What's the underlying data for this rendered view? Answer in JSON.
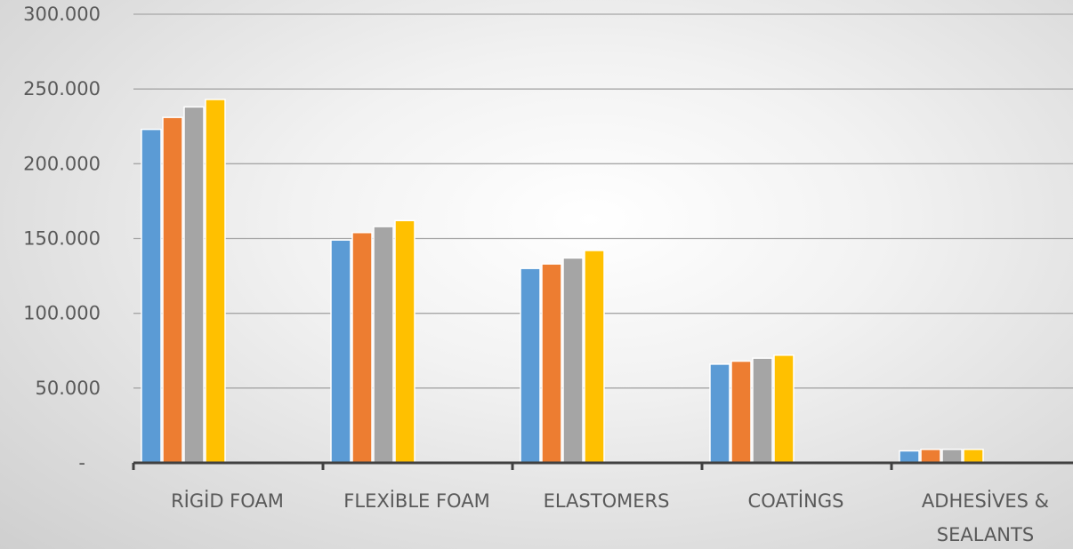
{
  "chart_data": {
    "type": "bar",
    "title": "",
    "xlabel": "",
    "ylabel": "",
    "ylim": [
      0,
      300000
    ],
    "yticks": [
      {
        "value": 0,
        "label": "-"
      },
      {
        "value": 50000,
        "label": "50.000"
      },
      {
        "value": 100000,
        "label": "100.000"
      },
      {
        "value": 150000,
        "label": "150.000"
      },
      {
        "value": 200000,
        "label": "200.000"
      },
      {
        "value": 250000,
        "label": "250.000"
      },
      {
        "value": 300000,
        "label": "300.000"
      }
    ],
    "grid": true,
    "legend": "none",
    "categories": [
      [
        "RİGİD FOAM"
      ],
      [
        "FLEXİBLE FOAM"
      ],
      [
        "ELASTOMERS"
      ],
      [
        "COATİNGS"
      ],
      [
        "ADHESİVES &",
        "SEALANTS"
      ]
    ],
    "series": [
      {
        "color": "#5b9bd5",
        "values": [
          223000,
          149000,
          130000,
          66000,
          8000
        ]
      },
      {
        "color": "#ed7d31",
        "values": [
          231000,
          154000,
          133000,
          68000,
          9000
        ]
      },
      {
        "color": "#a5a5a5",
        "values": [
          238000,
          158000,
          137000,
          70000,
          9000
        ]
      },
      {
        "color": "#ffc000",
        "values": [
          243000,
          162000,
          142000,
          72000,
          9000
        ]
      }
    ]
  }
}
